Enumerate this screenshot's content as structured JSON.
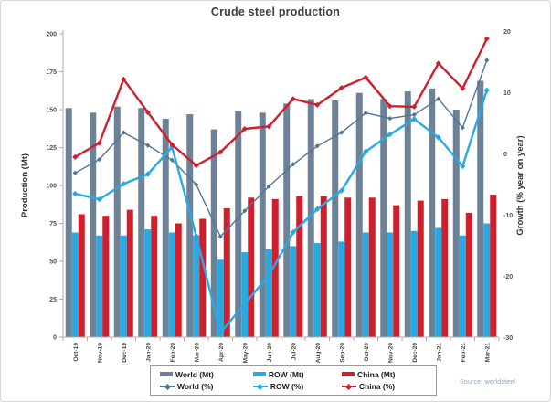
{
  "title": "Crude steel production",
  "source": "Source: worldsteel",
  "colors": {
    "world_bar": "#6D8297",
    "row_bar": "#29A9E1",
    "china_bar": "#CE1F2D",
    "world_line": "#527596",
    "row_line": "#29A9E1",
    "china_line": "#CE1F2D",
    "axis": "#ADADAD"
  },
  "chart_data": {
    "type": "combo-bar-line",
    "categories": [
      "Oct-19",
      "Nov-19",
      "Dec-19",
      "Jan-20",
      "Feb-20",
      "Mar-20",
      "Apr-20",
      "May-20",
      "Jun-20",
      "Jul-20",
      "Aug-20",
      "Sep-20",
      "Oct-20",
      "Nov-20",
      "Dec-20",
      "Jan-21",
      "Feb-21",
      "Mar-21"
    ],
    "left_axis": {
      "label": "Production (Mt)",
      "min": 0,
      "max": 200,
      "ticks": [
        0,
        25,
        50,
        75,
        100,
        125,
        150,
        175,
        200
      ]
    },
    "right_axis": {
      "label": "Growth (% year on year)",
      "min": -30,
      "max": 20,
      "ticks": [
        20,
        10,
        0,
        -10,
        -20,
        -30
      ]
    },
    "grid": "off",
    "legend_position": "bottom",
    "bar_series": [
      {
        "name": "World (Mt)",
        "color_key": "world_bar",
        "values": [
          151,
          148,
          152,
          151,
          144,
          147,
          137,
          149,
          148,
          154,
          157,
          156,
          161,
          157,
          162,
          164,
          150,
          169
        ]
      },
      {
        "name": "ROW (Mt)",
        "color_key": "row_bar",
        "values": [
          69,
          67,
          67,
          71,
          69,
          67,
          51,
          56,
          58,
          60,
          62,
          63,
          69,
          69,
          70,
          72,
          67,
          75
        ]
      },
      {
        "name": "China (Mt)",
        "color_key": "china_bar",
        "values": [
          81,
          80,
          84,
          80,
          75,
          78,
          85,
          92,
          91,
          93,
          93,
          92,
          92,
          87,
          90,
          91,
          82,
          94
        ]
      }
    ],
    "line_series": [
      {
        "name": "World (%)",
        "color_key": "world_line",
        "width": 1.4,
        "marker": 2.6,
        "values": [
          -3.1,
          -0.9,
          3.5,
          1.4,
          -1.0,
          -5.0,
          -13.5,
          -9.3,
          -5.3,
          -1.7,
          1.3,
          3.5,
          6.7,
          5.8,
          6.4,
          9.0,
          4.3,
          15.3
        ]
      },
      {
        "name": "ROW (%)",
        "color_key": "row_line",
        "width": 2.4,
        "marker": 3.2,
        "values": [
          -6.5,
          -7.4,
          -4.9,
          -3.3,
          1.1,
          -13.4,
          -29.2,
          -24.5,
          -19.8,
          -12.8,
          -9.0,
          -6.0,
          0.4,
          3.2,
          5.7,
          2.7,
          -2.0,
          10.4
        ]
      },
      {
        "name": "China (%)",
        "color_key": "china_line",
        "width": 2.4,
        "marker": 3.0,
        "values": [
          -0.5,
          1.8,
          12.2,
          6.8,
          1.5,
          -1.9,
          0.3,
          4.1,
          4.5,
          9.0,
          8.0,
          10.8,
          12.5,
          7.8,
          7.7,
          14.8,
          10.7,
          18.8
        ]
      }
    ]
  }
}
